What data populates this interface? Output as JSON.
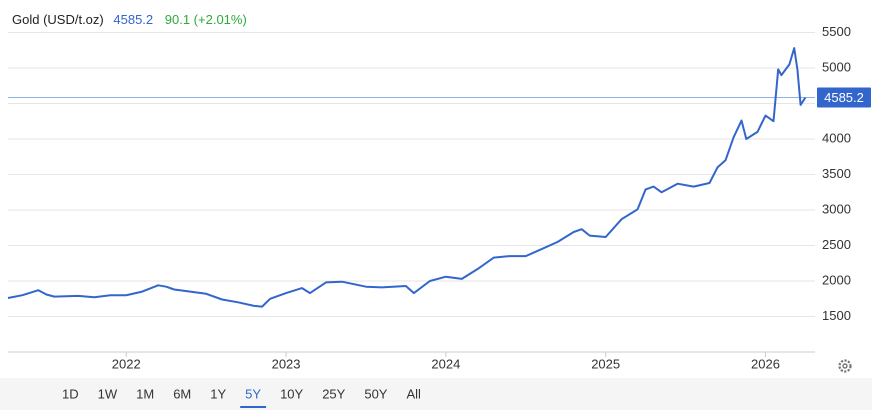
{
  "chart_data": {
    "type": "line",
    "title": "Gold (USD/t.oz)",
    "change_text": "90.1 (+2.01%)",
    "x": [
      2021.26,
      2021.35,
      2021.45,
      2021.5,
      2021.55,
      2021.7,
      2021.8,
      2021.9,
      2022.0,
      2022.1,
      2022.2,
      2022.25,
      2022.3,
      2022.4,
      2022.5,
      2022.6,
      2022.7,
      2022.8,
      2022.85,
      2022.9,
      2023.0,
      2023.1,
      2023.15,
      2023.25,
      2023.35,
      2023.5,
      2023.6,
      2023.75,
      2023.8,
      2023.9,
      2024.0,
      2024.1,
      2024.2,
      2024.3,
      2024.4,
      2024.5,
      2024.6,
      2024.7,
      2024.8,
      2024.85,
      2024.9,
      2025.0,
      2025.1,
      2025.2,
      2025.25,
      2025.3,
      2025.35,
      2025.45,
      2025.55,
      2025.65,
      2025.7,
      2025.75,
      2025.8,
      2025.85,
      2025.88,
      2025.95,
      2026.0,
      2026.05,
      2026.08,
      2026.1,
      2026.15,
      2026.18,
      2026.2,
      2026.22,
      2026.25
    ],
    "series": [
      {
        "name": "Gold",
        "color": "#3366cc",
        "values": [
          1760,
          1800,
          1870,
          1810,
          1780,
          1790,
          1770,
          1800,
          1800,
          1850,
          1940,
          1920,
          1880,
          1850,
          1820,
          1740,
          1700,
          1650,
          1640,
          1750,
          1830,
          1900,
          1830,
          1980,
          1990,
          1920,
          1910,
          1930,
          1830,
          2000,
          2060,
          2030,
          2170,
          2330,
          2350,
          2350,
          2450,
          2550,
          2690,
          2730,
          2640,
          2620,
          2870,
          3010,
          3290,
          3330,
          3250,
          3370,
          3330,
          3380,
          3600,
          3700,
          4020,
          4260,
          4000,
          4100,
          4330,
          4250,
          4980,
          4900,
          5050,
          5280,
          4980,
          4480,
          4585.2
        ]
      }
    ],
    "xlim": [
      2021.26,
      2026.31
    ],
    "xticks": [
      2022,
      2023,
      2024,
      2025,
      2026
    ],
    "ylim": [
      1000,
      5800
    ],
    "yticks": [
      1500,
      2000,
      2500,
      3000,
      3500,
      4000,
      4500,
      5000,
      5500
    ],
    "grid": true,
    "current_line_color": "#8fb0ea"
  },
  "toolbar": {
    "ranges": [
      "1D",
      "1W",
      "1M",
      "6M",
      "1Y",
      "5Y",
      "10Y",
      "25Y",
      "50Y",
      "All"
    ],
    "active": "5Y"
  }
}
